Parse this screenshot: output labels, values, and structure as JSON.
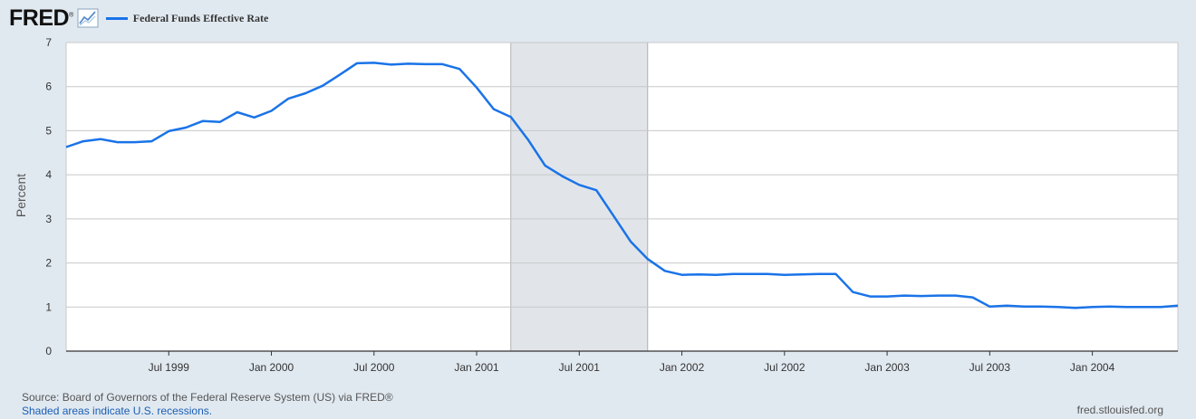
{
  "header": {
    "logo_text": "FRED",
    "logo_registered": "®"
  },
  "footer": {
    "source": "Source: Board of Governors of the Federal Reserve System (US) via FRED®",
    "shaded_note": "Shaded areas indicate U.S. recessions.",
    "site": "fred.stlouisfed.org"
  },
  "colors": {
    "line": "#1a73e8",
    "recession": "#e1e5ea",
    "background": "#e1e9f0",
    "plot": "#ffffff",
    "grid": "#c8c8c8"
  },
  "chart_data": {
    "type": "line",
    "title": "",
    "xlabel": "",
    "ylabel": "Percent",
    "ylim": [
      0,
      7
    ],
    "yticks": [
      0,
      1,
      2,
      3,
      4,
      5,
      6,
      7
    ],
    "xlim": [
      "1999-01",
      "2004-06"
    ],
    "xticks": [
      {
        "date": "1999-07",
        "label": "Jul 1999"
      },
      {
        "date": "2000-01",
        "label": "Jan 2000"
      },
      {
        "date": "2000-07",
        "label": "Jul 2000"
      },
      {
        "date": "2001-01",
        "label": "Jan 2001"
      },
      {
        "date": "2001-07",
        "label": "Jul 2001"
      },
      {
        "date": "2002-01",
        "label": "Jan 2002"
      },
      {
        "date": "2002-07",
        "label": "Jul 2002"
      },
      {
        "date": "2003-01",
        "label": "Jan 2003"
      },
      {
        "date": "2003-07",
        "label": "Jul 2003"
      },
      {
        "date": "2004-01",
        "label": "Jan 2004"
      }
    ],
    "grid": true,
    "legend_position": "top-left",
    "recessions": [
      {
        "start": "2001-03",
        "end": "2001-11"
      }
    ],
    "series": [
      {
        "name": "Federal Funds Effective Rate",
        "color": "#1a73e8",
        "x": [
          "1999-01",
          "1999-02",
          "1999-03",
          "1999-04",
          "1999-05",
          "1999-06",
          "1999-07",
          "1999-08",
          "1999-09",
          "1999-10",
          "1999-11",
          "1999-12",
          "2000-01",
          "2000-02",
          "2000-03",
          "2000-04",
          "2000-05",
          "2000-06",
          "2000-07",
          "2000-08",
          "2000-09",
          "2000-10",
          "2000-11",
          "2000-12",
          "2001-01",
          "2001-02",
          "2001-03",
          "2001-04",
          "2001-05",
          "2001-06",
          "2001-07",
          "2001-08",
          "2001-09",
          "2001-10",
          "2001-11",
          "2001-12",
          "2002-01",
          "2002-02",
          "2002-03",
          "2002-04",
          "2002-05",
          "2002-06",
          "2002-07",
          "2002-08",
          "2002-09",
          "2002-10",
          "2002-11",
          "2002-12",
          "2003-01",
          "2003-02",
          "2003-03",
          "2003-04",
          "2003-05",
          "2003-06",
          "2003-07",
          "2003-08",
          "2003-09",
          "2003-10",
          "2003-11",
          "2003-12",
          "2004-01",
          "2004-02",
          "2004-03",
          "2004-04",
          "2004-05",
          "2004-06"
        ],
        "values": [
          4.63,
          4.76,
          4.81,
          4.74,
          4.74,
          4.76,
          4.99,
          5.07,
          5.22,
          5.2,
          5.42,
          5.3,
          5.45,
          5.73,
          5.85,
          6.02,
          6.27,
          6.53,
          6.54,
          6.5,
          6.52,
          6.51,
          6.51,
          6.4,
          5.98,
          5.49,
          5.31,
          4.8,
          4.21,
          3.97,
          3.77,
          3.65,
          3.07,
          2.49,
          2.09,
          1.82,
          1.73,
          1.74,
          1.73,
          1.75,
          1.75,
          1.75,
          1.73,
          1.74,
          1.75,
          1.75,
          1.34,
          1.24,
          1.24,
          1.26,
          1.25,
          1.26,
          1.26,
          1.22,
          1.01,
          1.03,
          1.01,
          1.01,
          1.0,
          0.98,
          1.0,
          1.01,
          1.0,
          1.0,
          1.0,
          1.03
        ]
      }
    ]
  }
}
